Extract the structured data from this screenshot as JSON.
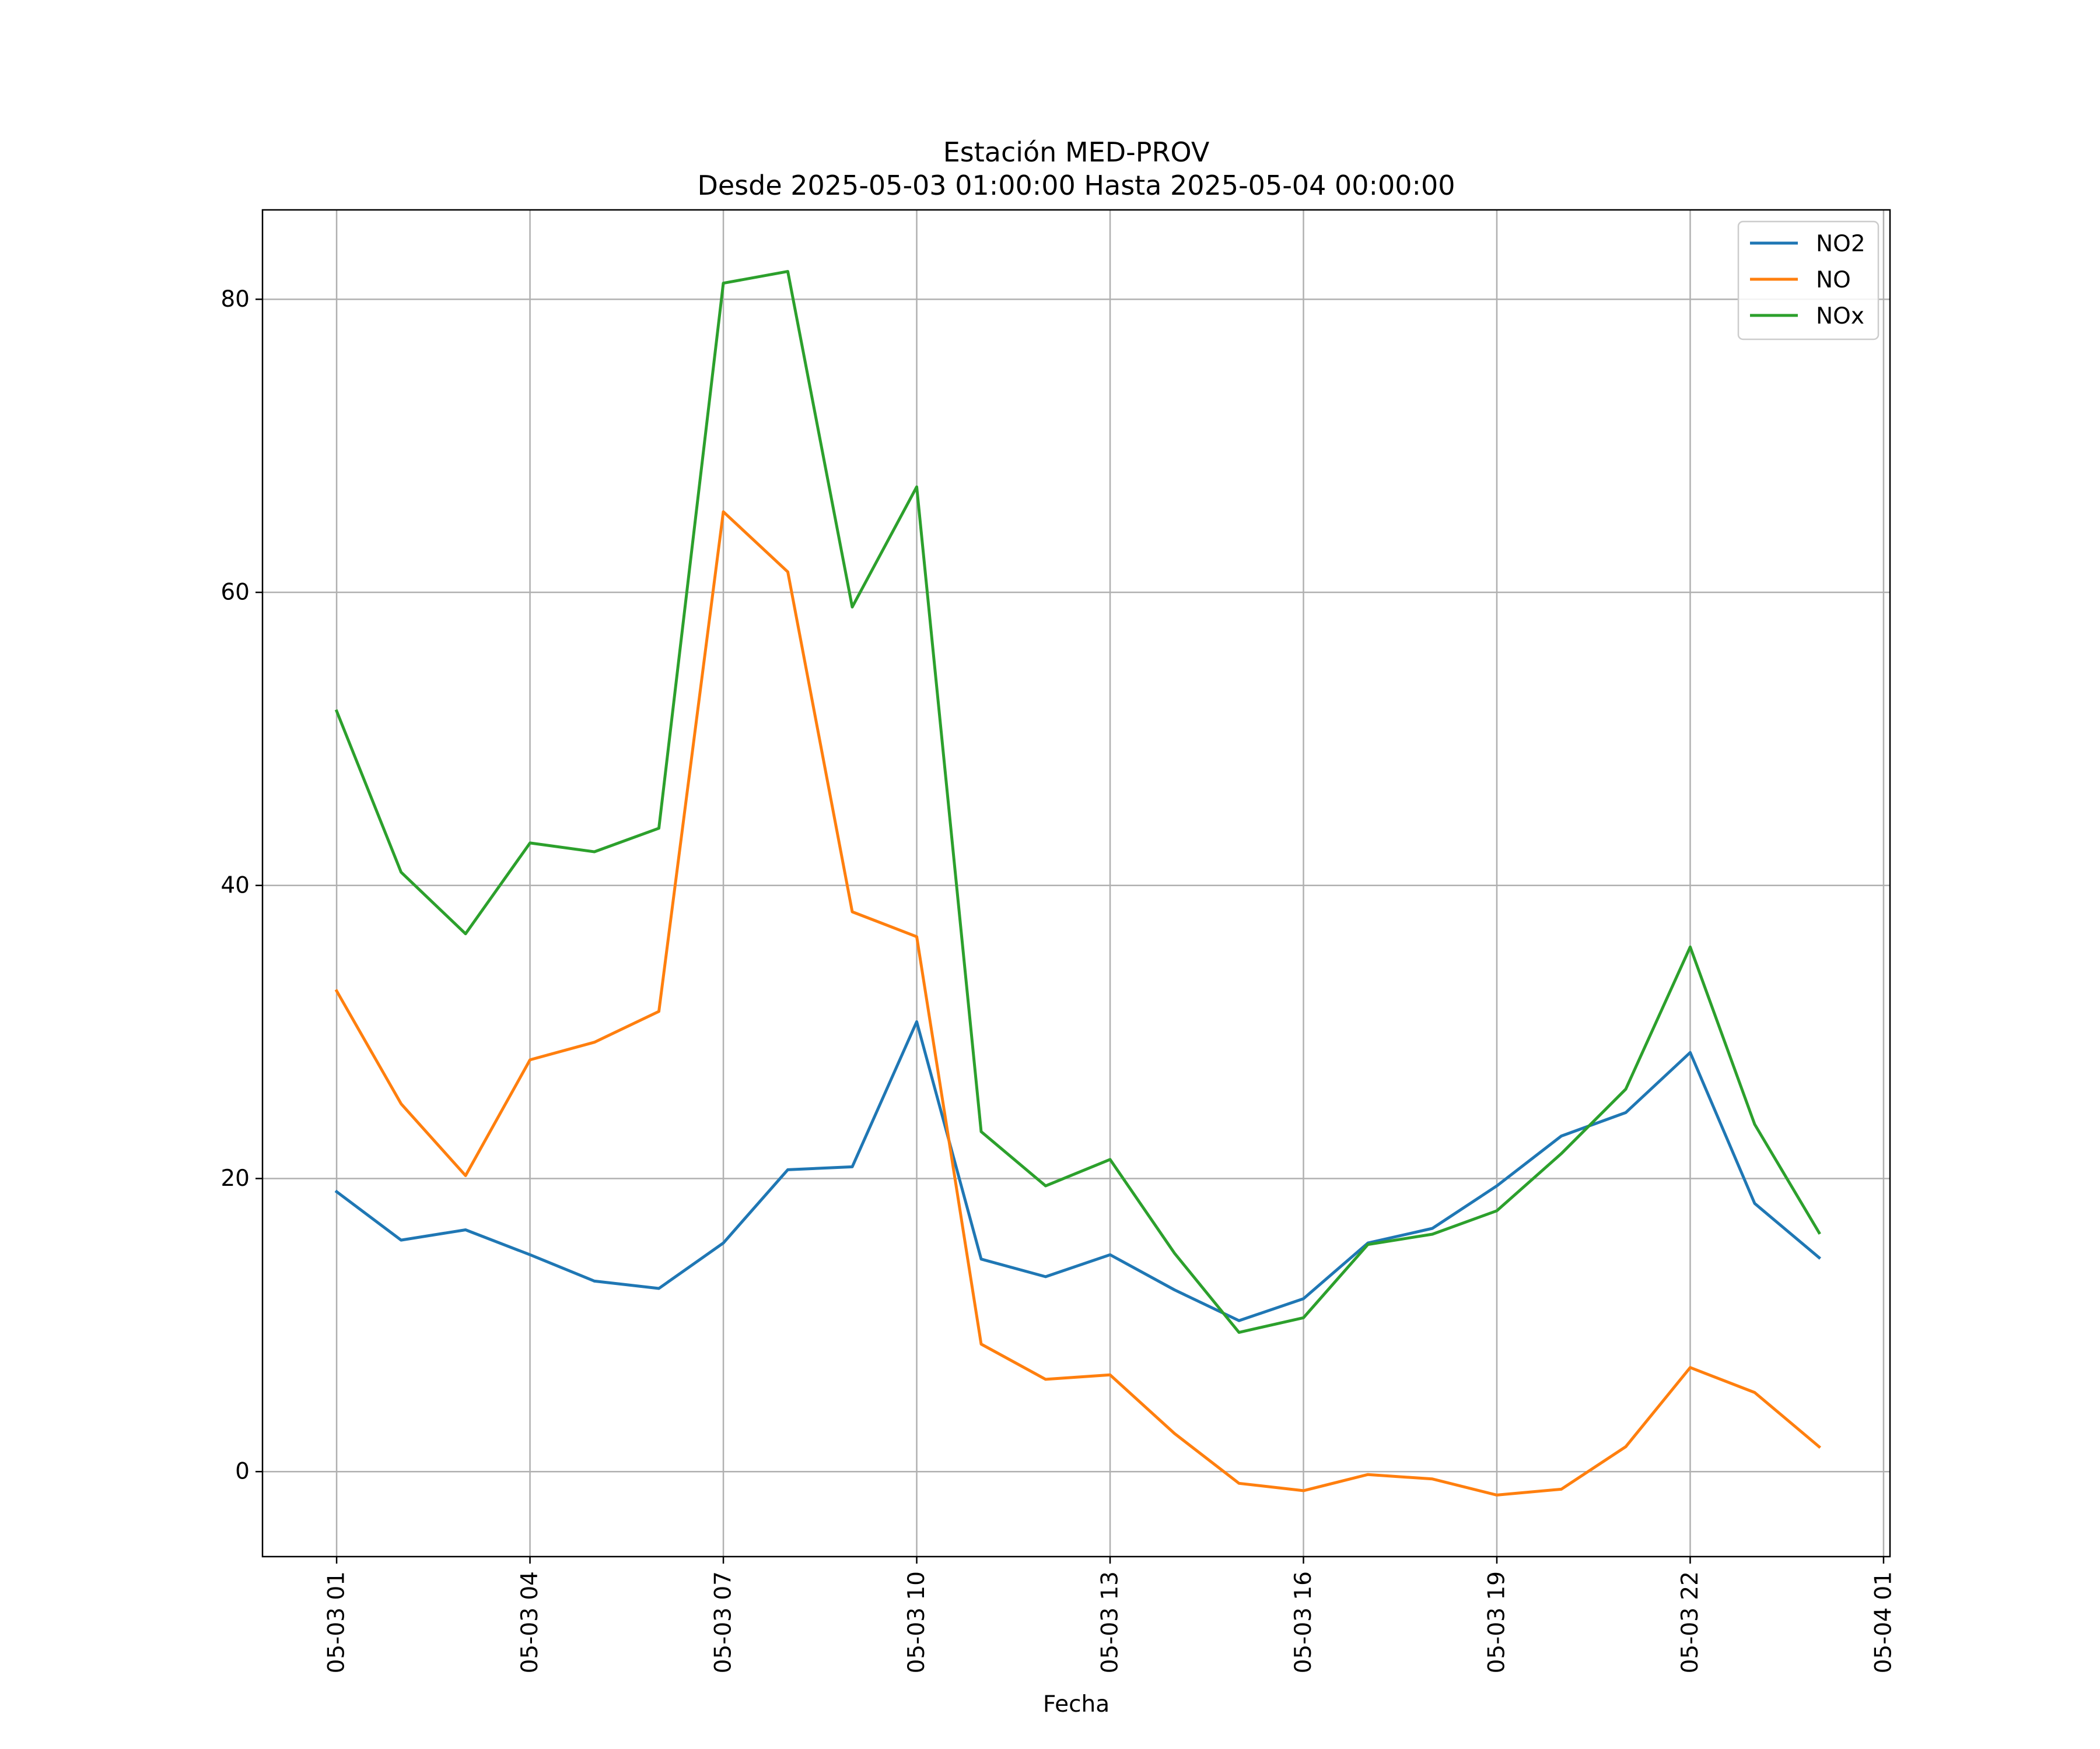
{
  "chart_data": {
    "type": "line",
    "title": "Estación MED-PROV",
    "subtitle": "Desde 2025-05-03 01:00:00 Hasta 2025-05-04 00:00:00",
    "xlabel": "Fecha",
    "ylabel": "",
    "x": [
      "05-03 01",
      "05-03 02",
      "05-03 03",
      "05-03 04",
      "05-03 05",
      "05-03 06",
      "05-03 07",
      "05-03 08",
      "05-03 09",
      "05-03 10",
      "05-03 11",
      "05-03 12",
      "05-03 13",
      "05-03 14",
      "05-03 15",
      "05-03 16",
      "05-03 17",
      "05-03 18",
      "05-03 19",
      "05-03 20",
      "05-03 21",
      "05-03 22",
      "05-03 23",
      "05-04 00"
    ],
    "x_hours": [
      1,
      2,
      3,
      4,
      5,
      6,
      7,
      8,
      9,
      10,
      11,
      12,
      13,
      14,
      15,
      16,
      17,
      18,
      19,
      20,
      21,
      22,
      23,
      24
    ],
    "xlim": [
      -0.15,
      25.1
    ],
    "ylim": [
      -5.8,
      86.1
    ],
    "x_tick_hours": [
      1,
      4,
      7,
      10,
      13,
      16,
      19,
      22,
      25
    ],
    "x_tick_labels": [
      "05-03 01",
      "05-03 04",
      "05-03 07",
      "05-03 10",
      "05-03 13",
      "05-03 16",
      "05-03 19",
      "05-03 22",
      "05-04 01"
    ],
    "y_ticks": [
      0,
      20,
      40,
      60,
      80
    ],
    "y_tick_labels": [
      "0",
      "20",
      "40",
      "60",
      "80"
    ],
    "grid": true,
    "legend_position": "top-right",
    "series": [
      {
        "name": "NO2",
        "color": "#1f77b4",
        "values": [
          19.1,
          15.8,
          16.5,
          14.8,
          13.0,
          12.5,
          15.6,
          20.6,
          20.8,
          30.7,
          14.5,
          13.3,
          14.8,
          12.4,
          10.3,
          11.8,
          15.6,
          16.6,
          19.5,
          22.9,
          24.5,
          28.6,
          18.3,
          14.6
        ]
      },
      {
        "name": "NO",
        "color": "#ff7f0e",
        "values": [
          32.8,
          25.1,
          20.2,
          28.1,
          29.3,
          31.4,
          65.5,
          61.4,
          38.2,
          36.5,
          8.7,
          6.3,
          6.6,
          2.6,
          -0.8,
          -1.3,
          -0.2,
          -0.5,
          -1.6,
          -1.2,
          1.7,
          7.1,
          5.4,
          1.7
        ]
      },
      {
        "name": "NOx",
        "color": "#2ca02c",
        "values": [
          51.9,
          40.9,
          36.7,
          42.9,
          42.3,
          43.9,
          81.1,
          81.9,
          59.0,
          67.2,
          23.2,
          19.5,
          21.3,
          14.9,
          9.5,
          10.5,
          15.5,
          16.2,
          17.8,
          21.7,
          26.1,
          35.8,
          23.7,
          16.3
        ]
      }
    ]
  }
}
